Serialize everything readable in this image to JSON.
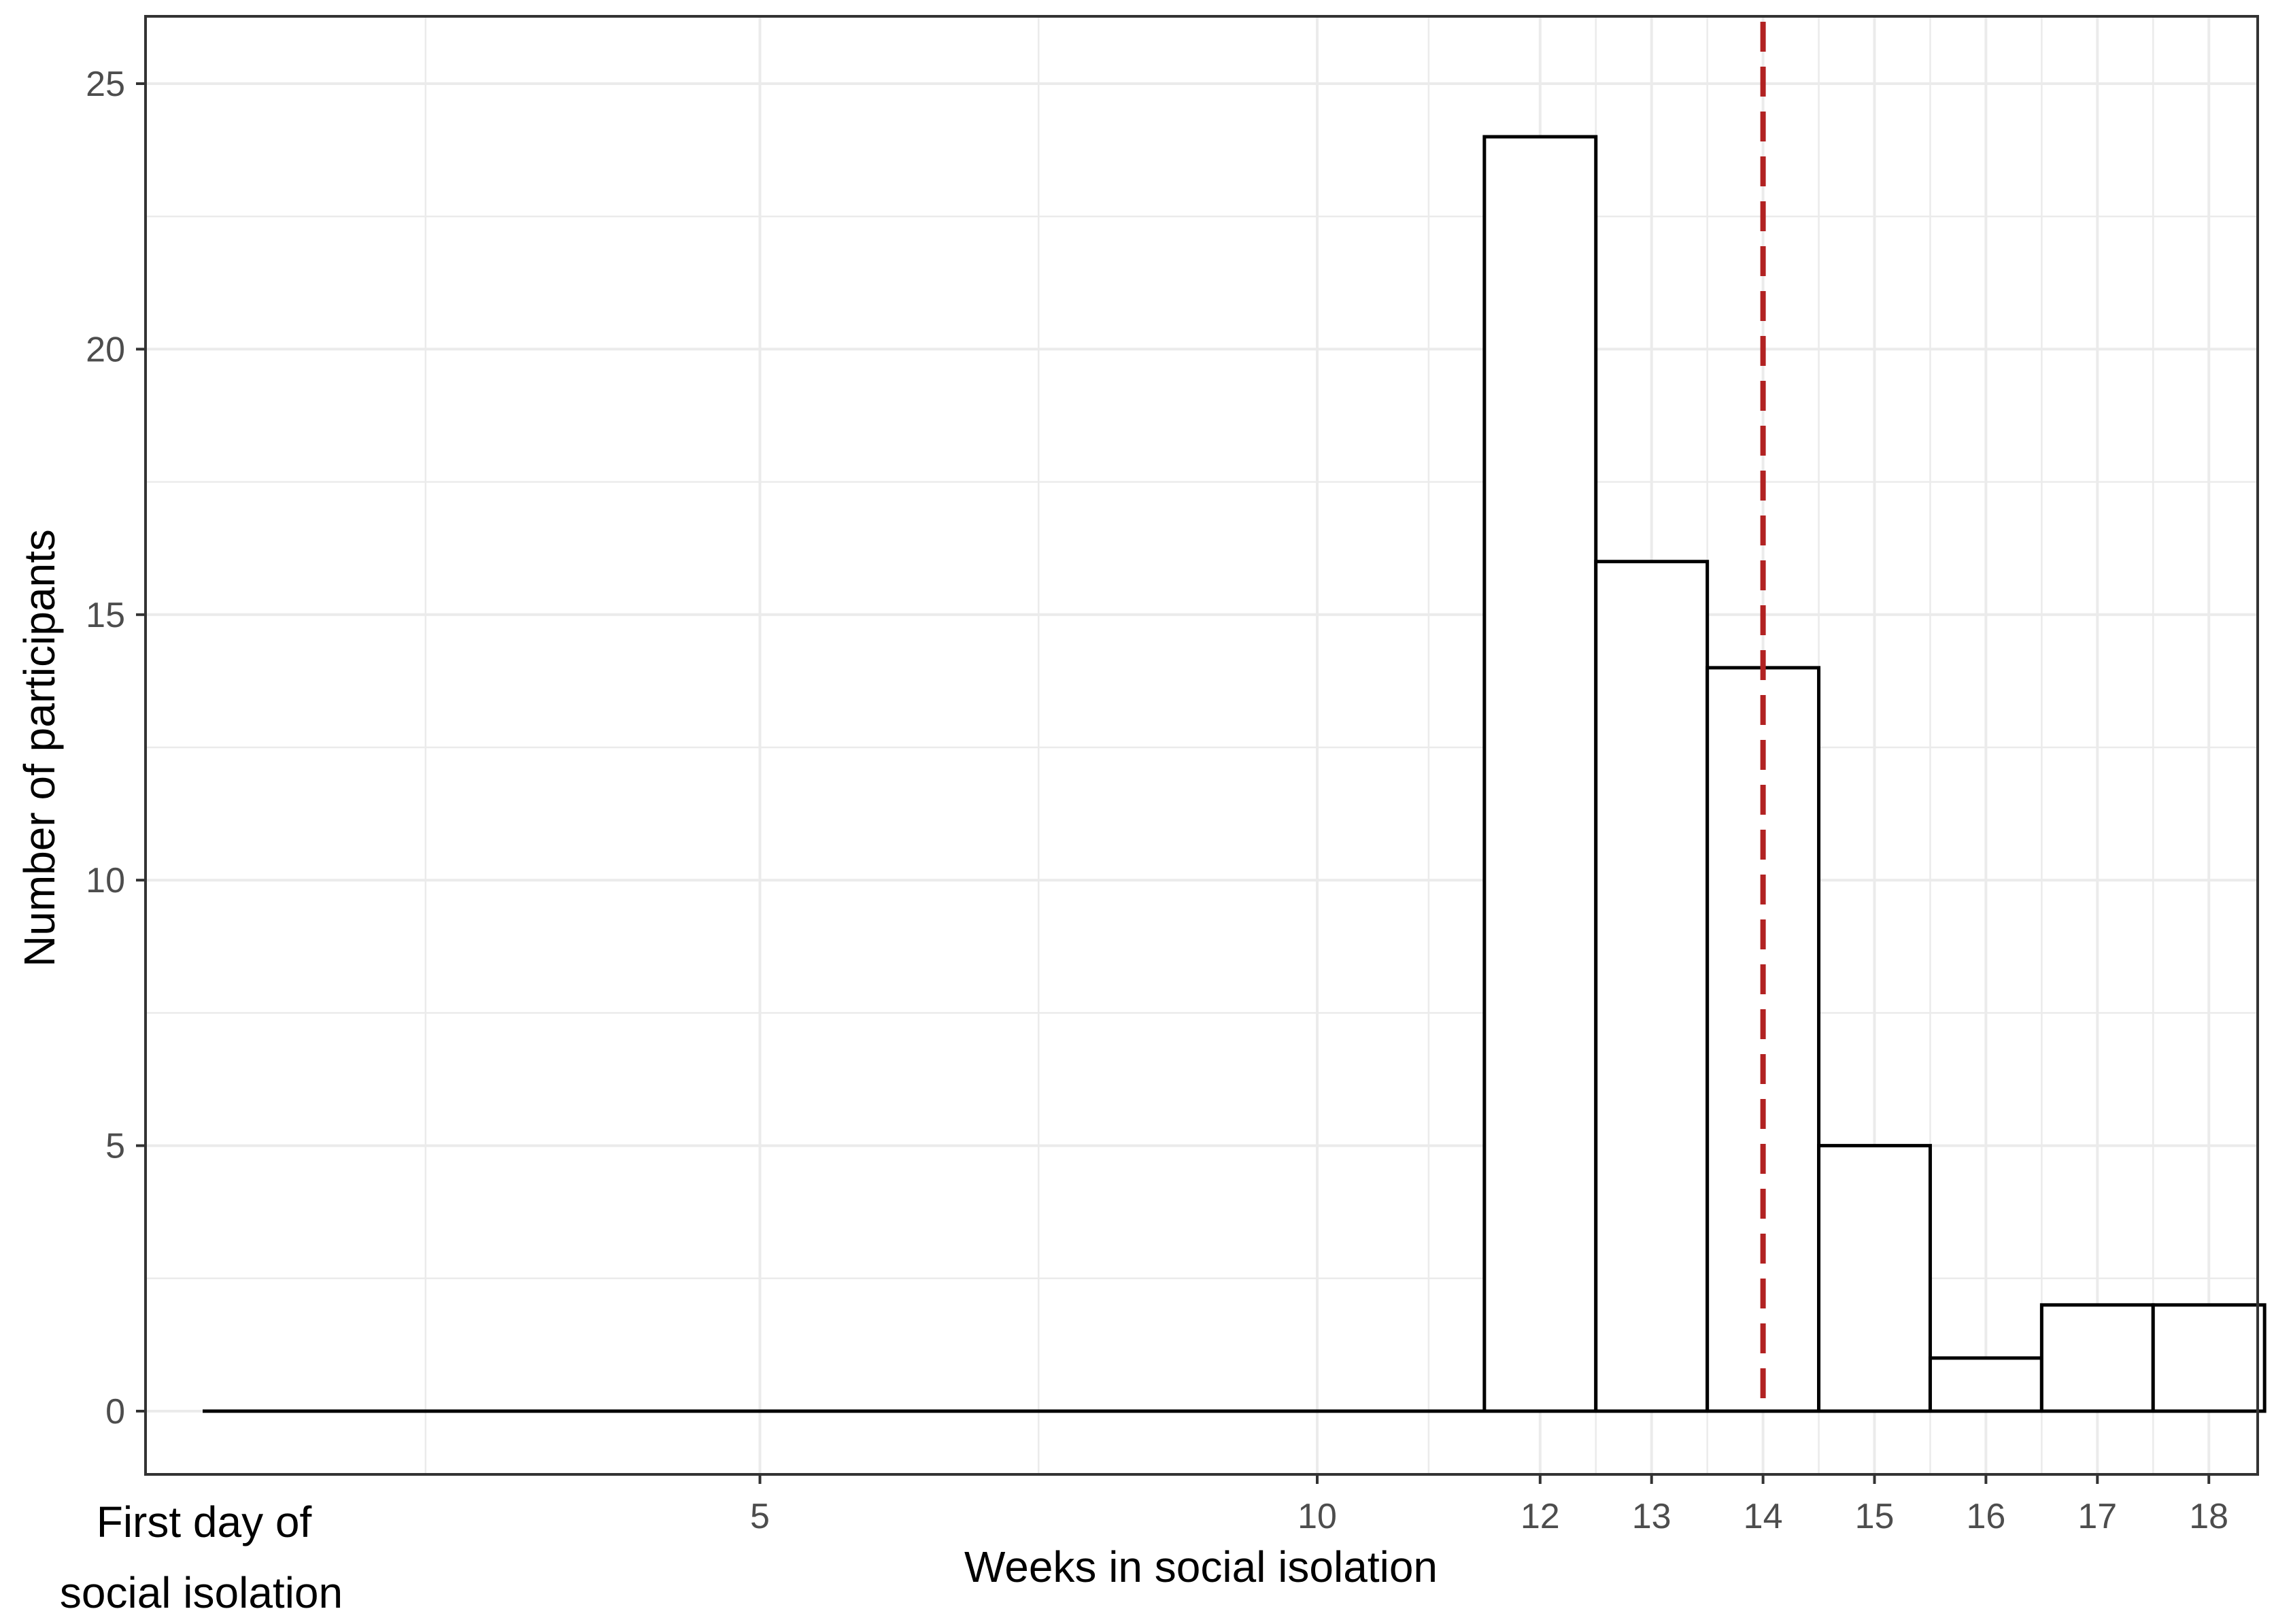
{
  "chart_data": {
    "type": "bar",
    "title": "",
    "xlabel": "Weeks in social isolation",
    "ylabel": "Number of participants",
    "x_origin_label_line1": "First day of",
    "x_origin_label_line2": "social isolation",
    "xlim": [
      0,
      18.5
    ],
    "ylim": [
      0,
      25
    ],
    "x_ticks": [
      5,
      10,
      12,
      13,
      14,
      15,
      16,
      17,
      18
    ],
    "x_tick_labels": [
      "5",
      "10",
      "12",
      "13",
      "14",
      "15",
      "16",
      "17",
      "18"
    ],
    "x_minor_gridlines": [
      2,
      7.5,
      11,
      12.5,
      13.5,
      14.5,
      15.5,
      16.5,
      17.5
    ],
    "y_ticks": [
      0,
      5,
      10,
      15,
      20,
      25
    ],
    "y_tick_labels": [
      "0",
      "5",
      "10",
      "15",
      "20",
      "25"
    ],
    "bins": [
      {
        "start": 11.5,
        "end": 12.5,
        "count": 24
      },
      {
        "start": 12.5,
        "end": 13.5,
        "count": 16
      },
      {
        "start": 13.5,
        "end": 14.5,
        "count": 14
      },
      {
        "start": 14.5,
        "end": 15.5,
        "count": 5
      },
      {
        "start": 15.5,
        "end": 16.5,
        "count": 1
      },
      {
        "start": 16.5,
        "end": 17.5,
        "count": 2
      },
      {
        "start": 17.5,
        "end": 18.5,
        "count": 2
      }
    ],
    "reference_line": {
      "x": 14,
      "style": "dashed",
      "color": "#b22222"
    },
    "grid": true,
    "bar_fill": "#ffffff",
    "bar_stroke": "#000000",
    "grid_color": "#ebebeb"
  }
}
